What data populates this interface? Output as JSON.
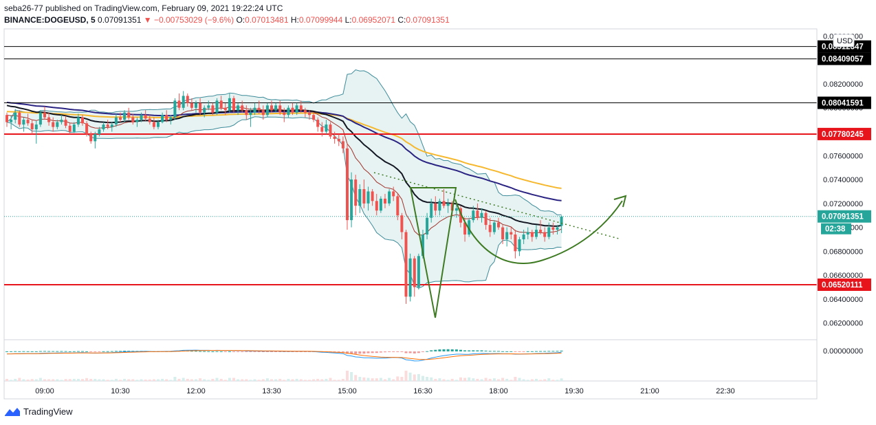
{
  "header": {
    "publisher_line": "seba26-77 published on TradingView.com, February 09, 2021 19:22:24 UTC",
    "symbol": "BINANCE:DOGEUSD, 5",
    "last": "0.07091351",
    "change": "▼ −0.00753029 (−9.6%)",
    "o_label": "O:",
    "o": "0.07013481",
    "h_label": "H:",
    "h": "0.07099944",
    "l_label": "L:",
    "l": "0.06952071",
    "c_label": "C:",
    "c": "0.07091351"
  },
  "footer": {
    "brand": "TradingView"
  },
  "currency_badge": "USD",
  "countdown": "02:38",
  "colors": {
    "up": "#26a69a",
    "down": "#ef5350",
    "red_line": "#e8141b",
    "black_line": "#000000",
    "ema_black": "#131722",
    "ema_orange": "#f5b82e",
    "ema_navy": "#2a2382",
    "bb_fill": "#e6f3f2",
    "bb_line": "#3d8b99",
    "pattern": "#3d7a22"
  },
  "chart_data": {
    "type": "candlestick",
    "symbol": "BINANCE:DOGEUSD",
    "interval": "5",
    "x_ticks": [
      "09:00",
      "10:30",
      "12:00",
      "13:30",
      "15:00",
      "16:30",
      "18:00",
      "19:30",
      "21:00",
      "22:30"
    ],
    "y_ticks": [
      "0.06200000",
      "0.06400000",
      "0.06600000",
      "0.06800000",
      "0.07000000",
      "0.07200000",
      "0.07400000",
      "0.07600000",
      "0.07800000",
      "0.08000000",
      "0.08200000",
      "0.08400000",
      "0.08600000"
    ],
    "ylim": [
      0.0606,
      0.0866
    ],
    "horizontal_lines": [
      {
        "value": 0.08512347,
        "label": "0.08512347",
        "color": "#000000"
      },
      {
        "value": 0.08409057,
        "label": "0.08409057",
        "color": "#000000"
      },
      {
        "value": 0.08041591,
        "label": "0.08041591",
        "color": "#000000"
      },
      {
        "value": 0.07780245,
        "label": "0.07780245",
        "color": "#e8141b"
      },
      {
        "value": 0.06520111,
        "label": "0.06520111",
        "color": "#e8141b"
      }
    ],
    "last_price": {
      "value": 0.07091351,
      "label": "0.07091351"
    },
    "indicator_axis_label": "0.00000000",
    "candles": [
      [
        "08:15",
        0.0794,
        0.0796,
        0.0784,
        0.0788
      ],
      [
        "08:20",
        0.0788,
        0.0794,
        0.0782,
        0.079
      ],
      [
        "08:25",
        0.079,
        0.0799,
        0.0787,
        0.0796
      ],
      [
        "08:30",
        0.0796,
        0.0798,
        0.0784,
        0.0786
      ],
      [
        "08:35",
        0.0786,
        0.0792,
        0.078,
        0.079
      ],
      [
        "08:40",
        0.079,
        0.0795,
        0.0785,
        0.0787
      ],
      [
        "08:45",
        0.0787,
        0.079,
        0.0778,
        0.0782
      ],
      [
        "08:50",
        0.0782,
        0.0789,
        0.077,
        0.0786
      ],
      [
        "08:55",
        0.0786,
        0.0798,
        0.0784,
        0.0796
      ],
      [
        "09:00",
        0.0796,
        0.0801,
        0.079,
        0.0792
      ],
      [
        "09:05",
        0.0792,
        0.0796,
        0.0785,
        0.0788
      ],
      [
        "09:10",
        0.0788,
        0.0792,
        0.078,
        0.0784
      ],
      [
        "09:15",
        0.0784,
        0.079,
        0.0782,
        0.0788
      ],
      [
        "09:20",
        0.0788,
        0.0794,
        0.0786,
        0.079
      ],
      [
        "09:25",
        0.079,
        0.0793,
        0.0783,
        0.0785
      ],
      [
        "09:30",
        0.0785,
        0.0787,
        0.0778,
        0.078
      ],
      [
        "09:35",
        0.078,
        0.0788,
        0.0779,
        0.0786
      ],
      [
        "09:40",
        0.0786,
        0.0795,
        0.0784,
        0.0792
      ],
      [
        "09:45",
        0.0792,
        0.0794,
        0.0785,
        0.0787
      ],
      [
        "09:50",
        0.0787,
        0.0789,
        0.0776,
        0.0778
      ],
      [
        "09:55",
        0.0778,
        0.078,
        0.077,
        0.0772
      ],
      [
        "10:00",
        0.0772,
        0.078,
        0.0766,
        0.0778
      ],
      [
        "10:05",
        0.0778,
        0.0784,
        0.0776,
        0.0782
      ],
      [
        "10:10",
        0.0782,
        0.0788,
        0.078,
        0.0786
      ],
      [
        "10:15",
        0.0786,
        0.079,
        0.0782,
        0.0784
      ],
      [
        "10:20",
        0.0784,
        0.0788,
        0.078,
        0.0786
      ],
      [
        "10:25",
        0.0786,
        0.0795,
        0.0784,
        0.0792
      ],
      [
        "10:30",
        0.0792,
        0.0796,
        0.0788,
        0.079
      ],
      [
        "10:35",
        0.079,
        0.0798,
        0.0788,
        0.0796
      ],
      [
        "10:40",
        0.0796,
        0.08,
        0.079,
        0.0792
      ],
      [
        "10:45",
        0.0792,
        0.0795,
        0.0786,
        0.0788
      ],
      [
        "10:50",
        0.0788,
        0.0792,
        0.0784,
        0.079
      ],
      [
        "10:55",
        0.079,
        0.0796,
        0.0788,
        0.0794
      ],
      [
        "11:00",
        0.0794,
        0.0798,
        0.0789,
        0.0791
      ],
      [
        "11:05",
        0.0791,
        0.0794,
        0.0786,
        0.0788
      ],
      [
        "11:10",
        0.0788,
        0.0792,
        0.0782,
        0.0784
      ],
      [
        "11:15",
        0.0784,
        0.079,
        0.0782,
        0.0788
      ],
      [
        "11:20",
        0.0788,
        0.0796,
        0.0787,
        0.0794
      ],
      [
        "11:25",
        0.0794,
        0.0798,
        0.0788,
        0.079
      ],
      [
        "11:30",
        0.079,
        0.0794,
        0.0786,
        0.0792
      ],
      [
        "11:35",
        0.0792,
        0.0808,
        0.079,
        0.0806
      ],
      [
        "11:40",
        0.0806,
        0.0812,
        0.0798,
        0.08
      ],
      [
        "11:45",
        0.08,
        0.0814,
        0.0798,
        0.081
      ],
      [
        "11:50",
        0.081,
        0.0812,
        0.0801,
        0.0804
      ],
      [
        "11:55",
        0.0804,
        0.0808,
        0.0798,
        0.08
      ],
      [
        "12:00",
        0.08,
        0.0806,
        0.0796,
        0.0804
      ],
      [
        "12:05",
        0.0804,
        0.0808,
        0.0794,
        0.0796
      ],
      [
        "12:10",
        0.0796,
        0.0802,
        0.0792,
        0.08
      ],
      [
        "12:15",
        0.08,
        0.0806,
        0.0798,
        0.0802
      ],
      [
        "12:20",
        0.0802,
        0.0804,
        0.0794,
        0.0796
      ],
      [
        "12:25",
        0.0796,
        0.0808,
        0.0794,
        0.0806
      ],
      [
        "12:30",
        0.0806,
        0.081,
        0.0798,
        0.08
      ],
      [
        "12:35",
        0.08,
        0.0804,
        0.0794,
        0.0798
      ],
      [
        "12:40",
        0.0798,
        0.0812,
        0.0796,
        0.0808
      ],
      [
        "12:45",
        0.0808,
        0.081,
        0.0796,
        0.0798
      ],
      [
        "12:50",
        0.0798,
        0.0804,
        0.0794,
        0.0802
      ],
      [
        "12:55",
        0.0802,
        0.0806,
        0.0796,
        0.0798
      ],
      [
        "13:00",
        0.0798,
        0.0802,
        0.079,
        0.0794
      ],
      [
        "13:05",
        0.0794,
        0.08,
        0.0784,
        0.0796
      ],
      [
        "13:10",
        0.0796,
        0.0804,
        0.0794,
        0.08
      ],
      [
        "13:15",
        0.08,
        0.0806,
        0.0795,
        0.0798
      ],
      [
        "13:20",
        0.0798,
        0.0802,
        0.079,
        0.0794
      ],
      [
        "13:25",
        0.0794,
        0.0804,
        0.0792,
        0.0802
      ],
      [
        "13:30",
        0.0802,
        0.0806,
        0.0796,
        0.0798
      ],
      [
        "13:35",
        0.0798,
        0.0804,
        0.0796,
        0.0802
      ],
      [
        "13:40",
        0.0802,
        0.0806,
        0.0794,
        0.0796
      ],
      [
        "13:45",
        0.0796,
        0.08,
        0.0788,
        0.0794
      ],
      [
        "13:50",
        0.0794,
        0.0802,
        0.0792,
        0.08
      ],
      [
        "13:55",
        0.08,
        0.0804,
        0.0794,
        0.0796
      ],
      [
        "14:00",
        0.0796,
        0.0804,
        0.0794,
        0.0802
      ],
      [
        "14:05",
        0.0802,
        0.0806,
        0.0796,
        0.0798
      ],
      [
        "14:10",
        0.0798,
        0.08,
        0.0792,
        0.0796
      ],
      [
        "14:15",
        0.0796,
        0.0798,
        0.079,
        0.0794
      ],
      [
        "14:20",
        0.0794,
        0.0796,
        0.0788,
        0.079
      ],
      [
        "14:25",
        0.079,
        0.0792,
        0.078,
        0.0784
      ],
      [
        "14:30",
        0.0784,
        0.0788,
        0.0776,
        0.078
      ],
      [
        "14:35",
        0.078,
        0.079,
        0.0778,
        0.0786
      ],
      [
        "14:40",
        0.0786,
        0.0788,
        0.0774,
        0.0776
      ],
      [
        "14:45",
        0.0776,
        0.078,
        0.077,
        0.0774
      ],
      [
        "14:50",
        0.0774,
        0.0778,
        0.0768,
        0.0772
      ],
      [
        "14:55",
        0.0772,
        0.0776,
        0.0762,
        0.0766
      ],
      [
        "15:00",
        0.0766,
        0.077,
        0.0698,
        0.0706
      ],
      [
        "15:05",
        0.0706,
        0.0746,
        0.07,
        0.074
      ],
      [
        "15:10",
        0.074,
        0.0744,
        0.071,
        0.0718
      ],
      [
        "15:15",
        0.0718,
        0.0736,
        0.0712,
        0.0732
      ],
      [
        "15:20",
        0.0732,
        0.074,
        0.0716,
        0.072
      ],
      [
        "15:25",
        0.072,
        0.0734,
        0.0714,
        0.073
      ],
      [
        "15:30",
        0.073,
        0.0732,
        0.0718,
        0.0722
      ],
      [
        "15:35",
        0.0722,
        0.0728,
        0.071,
        0.0714
      ],
      [
        "15:40",
        0.0714,
        0.0726,
        0.0712,
        0.0724
      ],
      [
        "15:45",
        0.0724,
        0.0728,
        0.0716,
        0.072
      ],
      [
        "15:50",
        0.072,
        0.0732,
        0.0718,
        0.073
      ],
      [
        "15:55",
        0.073,
        0.0734,
        0.0722,
        0.0726
      ],
      [
        "16:00",
        0.0726,
        0.0728,
        0.0706,
        0.071
      ],
      [
        "16:05",
        0.071,
        0.0712,
        0.069,
        0.0696
      ],
      [
        "16:10",
        0.0696,
        0.0698,
        0.0636,
        0.0642
      ],
      [
        "16:15",
        0.0642,
        0.0678,
        0.0638,
        0.0674
      ],
      [
        "16:20",
        0.0674,
        0.0676,
        0.0642,
        0.065
      ],
      [
        "16:25",
        0.065,
        0.0678,
        0.0648,
        0.0676
      ],
      [
        "16:30",
        0.0676,
        0.0698,
        0.0674,
        0.0694
      ],
      [
        "16:35",
        0.0694,
        0.0712,
        0.069,
        0.0708
      ],
      [
        "16:40",
        0.0708,
        0.0724,
        0.0704,
        0.072
      ],
      [
        "16:45",
        0.072,
        0.0726,
        0.071,
        0.0714
      ],
      [
        "16:50",
        0.0714,
        0.0724,
        0.071,
        0.0722
      ],
      [
        "16:55",
        0.0722,
        0.0732,
        0.0716,
        0.0718
      ],
      [
        "17:00",
        0.0718,
        0.0724,
        0.0712,
        0.072
      ],
      [
        "17:05",
        0.072,
        0.0722,
        0.071,
        0.0714
      ],
      [
        "17:10",
        0.0714,
        0.072,
        0.0708,
        0.0716
      ],
      [
        "17:15",
        0.0716,
        0.0718,
        0.07,
        0.0704
      ],
      [
        "17:20",
        0.0704,
        0.0708,
        0.0688,
        0.0694
      ],
      [
        "17:25",
        0.0694,
        0.0708,
        0.0692,
        0.0706
      ],
      [
        "17:30",
        0.0706,
        0.0718,
        0.0704,
        0.0714
      ],
      [
        "17:35",
        0.0714,
        0.072,
        0.0706,
        0.0708
      ],
      [
        "17:40",
        0.0708,
        0.0716,
        0.0704,
        0.0712
      ],
      [
        "17:45",
        0.0712,
        0.0714,
        0.0698,
        0.0702
      ],
      [
        "17:50",
        0.0702,
        0.0708,
        0.0692,
        0.0696
      ],
      [
        "17:55",
        0.0696,
        0.0706,
        0.0694,
        0.0704
      ],
      [
        "18:00",
        0.0704,
        0.0708,
        0.0698,
        0.07
      ],
      [
        "18:05",
        0.07,
        0.0702,
        0.0686,
        0.069
      ],
      [
        "18:10",
        0.069,
        0.07,
        0.0684,
        0.0696
      ],
      [
        "18:15",
        0.0696,
        0.07,
        0.069,
        0.0694
      ],
      [
        "18:20",
        0.0694,
        0.0698,
        0.0674,
        0.068
      ],
      [
        "18:25",
        0.068,
        0.0692,
        0.0676,
        0.069
      ],
      [
        "18:30",
        0.069,
        0.0698,
        0.0686,
        0.0694
      ],
      [
        "18:35",
        0.0694,
        0.07,
        0.069,
        0.0696
      ],
      [
        "18:40",
        0.0696,
        0.0698,
        0.0688,
        0.0692
      ],
      [
        "18:45",
        0.0692,
        0.0702,
        0.069,
        0.0698
      ],
      [
        "18:50",
        0.0698,
        0.0706,
        0.0694,
        0.0696
      ],
      [
        "18:55",
        0.0696,
        0.07,
        0.0688,
        0.0692
      ],
      [
        "19:00",
        0.0692,
        0.0704,
        0.069,
        0.07
      ],
      [
        "19:05",
        0.07,
        0.0704,
        0.0694,
        0.0698
      ],
      [
        "19:10",
        0.0698,
        0.0702,
        0.0694,
        0.07
      ],
      [
        "19:15",
        0.07013,
        0.071,
        0.06952,
        0.07091
      ]
    ],
    "indicators": [
      {
        "type": "bollinger_bands"
      },
      {
        "type": "moving_average",
        "color": "#131722"
      },
      {
        "type": "moving_average",
        "color": "#f5b82e"
      },
      {
        "type": "moving_average",
        "color": "#2a2382"
      },
      {
        "type": "moving_average",
        "color": "#a0322b"
      },
      {
        "type": "macd",
        "pane": "lower"
      },
      {
        "type": "volume",
        "pane": "lower"
      }
    ],
    "annotations": [
      {
        "type": "dotted_trendline",
        "color": "#3d7a22"
      },
      {
        "type": "pattern",
        "shape": "inverted-triangle",
        "color": "#3d7a22"
      },
      {
        "type": "pattern",
        "shape": "cup-curve-with-arrow",
        "color": "#3d7a22"
      }
    ]
  }
}
